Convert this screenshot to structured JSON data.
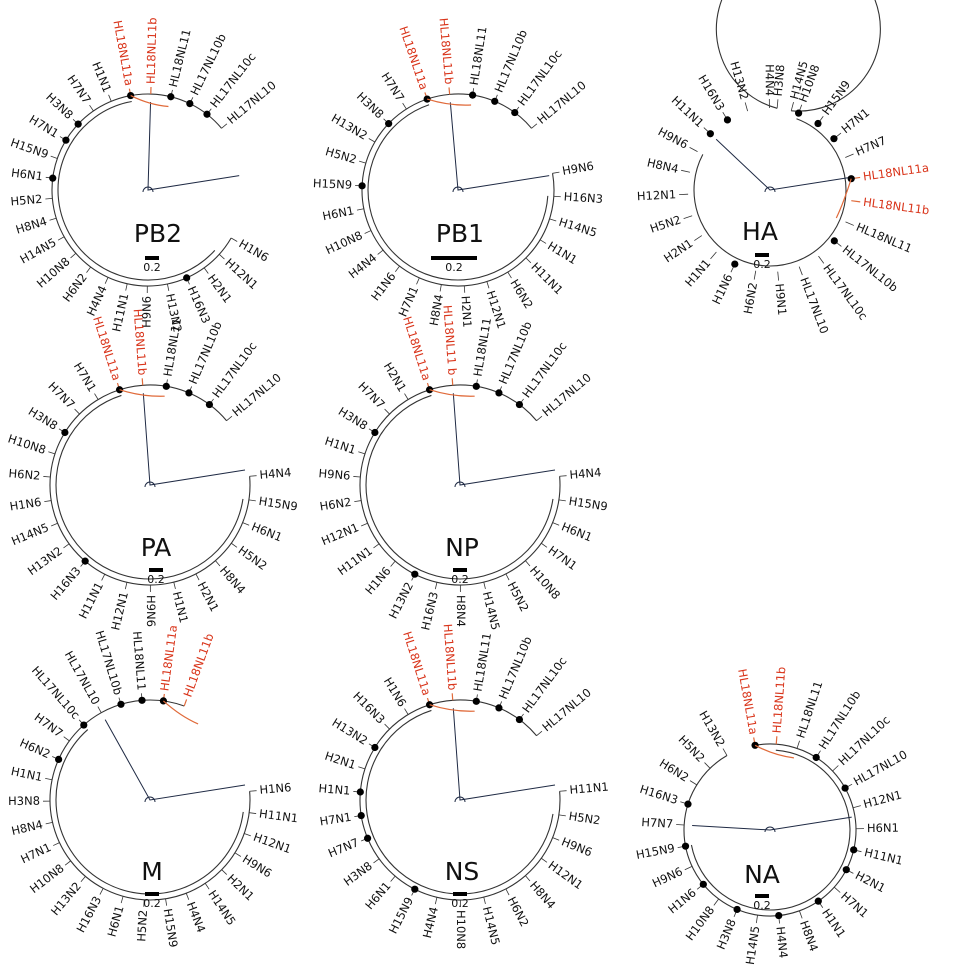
{
  "scale_label": "0.2",
  "trees": [
    {
      "name": "PB2",
      "leaves": [
        {
          "label": "H1N6",
          "red": false
        },
        {
          "label": "H12N1",
          "red": false
        },
        {
          "label": "H2N1",
          "red": false
        },
        {
          "label": "H16N3",
          "red": false,
          "node": true
        },
        {
          "label": "H13N2",
          "red": false
        },
        {
          "label": "H9N6",
          "red": false
        },
        {
          "label": "H11N1",
          "red": false
        },
        {
          "label": "H4N4",
          "red": false
        },
        {
          "label": "H6N2",
          "red": false
        },
        {
          "label": "H10N8",
          "red": false
        },
        {
          "label": "H14N5",
          "red": false
        },
        {
          "label": "H8N4",
          "red": false
        },
        {
          "label": "H5N2",
          "red": false
        },
        {
          "label": "H6N1",
          "red": false,
          "node": true
        },
        {
          "label": "H15N9",
          "red": false
        },
        {
          "label": "H7N1",
          "red": false,
          "node": true
        },
        {
          "label": "H3N8",
          "red": false,
          "node": true
        },
        {
          "label": "H7N7",
          "red": false
        },
        {
          "label": "H1N1",
          "red": false
        },
        {
          "label": "HL18NL11a",
          "red": true,
          "node": true
        },
        {
          "label": "HL18NL11b",
          "red": true
        },
        {
          "label": "HL18NL11",
          "red": false,
          "node": true
        },
        {
          "label": "HL17NL10b",
          "red": false,
          "node": true
        },
        {
          "label": "HL17NL10c",
          "red": false,
          "node": true
        },
        {
          "label": "HL17NL10",
          "red": false
        }
      ]
    },
    {
      "name": "PB1",
      "leaves": [
        {
          "label": "H9N6",
          "red": false
        },
        {
          "label": "H16N3",
          "red": false
        },
        {
          "label": "H14N5",
          "red": false
        },
        {
          "label": "H1N1",
          "red": false
        },
        {
          "label": "H11N1",
          "red": false
        },
        {
          "label": "H6N2",
          "red": false
        },
        {
          "label": "H12N1",
          "red": false
        },
        {
          "label": "H2N1",
          "red": false
        },
        {
          "label": "H8N4",
          "red": false
        },
        {
          "label": "H7N1",
          "red": false
        },
        {
          "label": "H1N6",
          "red": false
        },
        {
          "label": "H4N4",
          "red": false
        },
        {
          "label": "H10N8",
          "red": false
        },
        {
          "label": "H6N1",
          "red": false
        },
        {
          "label": "H15N9",
          "red": false,
          "node": true
        },
        {
          "label": "H5N2",
          "red": false
        },
        {
          "label": "H13N2",
          "red": false
        },
        {
          "label": "H3N8",
          "red": false,
          "node": true
        },
        {
          "label": "H7N7",
          "red": false
        },
        {
          "label": "HL18NL11a",
          "red": true,
          "node": true
        },
        {
          "label": "HL18NL11b",
          "red": true
        },
        {
          "label": "HL18NL11",
          "red": false,
          "node": true
        },
        {
          "label": "HL17NL10b",
          "red": false,
          "node": true
        },
        {
          "label": "HL17NL10c",
          "red": false,
          "node": true
        },
        {
          "label": "HL17NL10",
          "red": false
        }
      ]
    },
    {
      "name": "HA",
      "leaves": [
        {
          "label": "H3N8",
          "red": false
        },
        {
          "label": "H10N8",
          "red": false,
          "node": true
        },
        {
          "label": "H15N9",
          "red": false,
          "node": true
        },
        {
          "label": "H7N1",
          "red": false,
          "node": true
        },
        {
          "label": "H7N7",
          "red": false
        },
        {
          "label": "HL18NL11a",
          "red": true,
          "node": true
        },
        {
          "label": "HL18NL11b",
          "red": true
        },
        {
          "label": "HL18NL11",
          "red": false
        },
        {
          "label": "HL17NL10b",
          "red": false,
          "node": true
        },
        {
          "label": "HL17NL10c",
          "red": false
        },
        {
          "label": "HL17NL10",
          "red": false
        },
        {
          "label": "H9N1",
          "red": false
        },
        {
          "label": "H6N2",
          "red": false
        },
        {
          "label": "H1N6",
          "red": false,
          "node": true
        },
        {
          "label": "H1N1",
          "red": false
        },
        {
          "label": "H2N1",
          "red": false
        },
        {
          "label": "H5N2",
          "red": false
        },
        {
          "label": "H12N1",
          "red": false
        },
        {
          "label": "H8N4",
          "red": false
        },
        {
          "label": "H9N6",
          "red": false
        },
        {
          "label": "H11N1",
          "red": false,
          "node": true
        },
        {
          "label": "H16N3",
          "red": false,
          "node": true
        },
        {
          "label": "H13N2",
          "red": false
        },
        {
          "label": "H4N4",
          "red": false
        },
        {
          "label": "H14N5",
          "red": false
        }
      ]
    },
    {
      "name": "PA",
      "leaves": [
        {
          "label": "H4N4",
          "red": false
        },
        {
          "label": "H15N9",
          "red": false
        },
        {
          "label": "H6N1",
          "red": false
        },
        {
          "label": "H5N2",
          "red": false
        },
        {
          "label": "H8N4",
          "red": false
        },
        {
          "label": "H2N1",
          "red": false
        },
        {
          "label": "H1N1",
          "red": false
        },
        {
          "label": "H9N6",
          "red": false
        },
        {
          "label": "H12N1",
          "red": false
        },
        {
          "label": "H11N1",
          "red": false
        },
        {
          "label": "H16N3",
          "red": false,
          "node": true
        },
        {
          "label": "H13N2",
          "red": false
        },
        {
          "label": "H14N5",
          "red": false
        },
        {
          "label": "H1N6",
          "red": false
        },
        {
          "label": "H6N2",
          "red": false
        },
        {
          "label": "H10N8",
          "red": false
        },
        {
          "label": "H3N8",
          "red": false,
          "node": true
        },
        {
          "label": "H7N7",
          "red": false
        },
        {
          "label": "H7N1",
          "red": false
        },
        {
          "label": "HL18NL11a",
          "red": true,
          "node": true
        },
        {
          "label": "HL18NL11b",
          "red": true
        },
        {
          "label": "HL18NL11",
          "red": false,
          "node": true
        },
        {
          "label": "HL17NL10b",
          "red": false,
          "node": true
        },
        {
          "label": "HL17NL10c",
          "red": false,
          "node": true
        },
        {
          "label": "HL17NL10",
          "red": false
        }
      ]
    },
    {
      "name": "NP",
      "leaves": [
        {
          "label": "H4N4",
          "red": false
        },
        {
          "label": "H15N9",
          "red": false
        },
        {
          "label": "H6N1",
          "red": false
        },
        {
          "label": "H7N1",
          "red": false
        },
        {
          "label": "H10N8",
          "red": false
        },
        {
          "label": "H5N2",
          "red": false
        },
        {
          "label": "H14N5",
          "red": false
        },
        {
          "label": "H8N4",
          "red": false
        },
        {
          "label": "H16N3",
          "red": false
        },
        {
          "label": "H13N2",
          "red": false,
          "node": true
        },
        {
          "label": "H1N6",
          "red": false
        },
        {
          "label": "H11N1",
          "red": false
        },
        {
          "label": "H12N1",
          "red": false
        },
        {
          "label": "H6N2",
          "red": false
        },
        {
          "label": "H9N6",
          "red": false
        },
        {
          "label": "H1N1",
          "red": false
        },
        {
          "label": "H3N8",
          "red": false,
          "node": true
        },
        {
          "label": "H7N7",
          "red": false
        },
        {
          "label": "H2N1",
          "red": false
        },
        {
          "label": "HL18NL11a",
          "red": true,
          "node": true
        },
        {
          "label": "HL18NL11 b",
          "red": true
        },
        {
          "label": "HL18NL11",
          "red": false,
          "node": true
        },
        {
          "label": "HL17NL10b",
          "red": false,
          "node": true
        },
        {
          "label": "HL17NL10c",
          "red": false,
          "node": true
        },
        {
          "label": "HL17NL10",
          "red": false
        }
      ]
    },
    {
      "name": "M",
      "leaves": [
        {
          "label": "H1N6",
          "red": false
        },
        {
          "label": "H11N1",
          "red": false
        },
        {
          "label": "H12N1",
          "red": false
        },
        {
          "label": "H9N6",
          "red": false
        },
        {
          "label": "H2N1",
          "red": false
        },
        {
          "label": "H14N5",
          "red": false
        },
        {
          "label": "H4N4",
          "red": false
        },
        {
          "label": "H15N9",
          "red": false
        },
        {
          "label": "H5N2",
          "red": false
        },
        {
          "label": "H6N1",
          "red": false
        },
        {
          "label": "H16N3",
          "red": false
        },
        {
          "label": "H13N2",
          "red": false
        },
        {
          "label": "H10N8",
          "red": false
        },
        {
          "label": "H7N1",
          "red": false
        },
        {
          "label": "H8N4",
          "red": false
        },
        {
          "label": "H3N8",
          "red": false
        },
        {
          "label": "H1N1",
          "red": false
        },
        {
          "label": "H6N2",
          "red": false,
          "node": true
        },
        {
          "label": "H7N7",
          "red": false
        },
        {
          "label": "HL17NL10c",
          "red": false,
          "node": true
        },
        {
          "label": "HL17NL10",
          "red": false
        },
        {
          "label": "HL17NL10b",
          "red": false,
          "node": true
        },
        {
          "label": "HL18NL11",
          "red": false,
          "node": true
        },
        {
          "label": "HL18NL11a",
          "red": true,
          "node": true
        },
        {
          "label": "HL18NL11b",
          "red": true
        }
      ]
    },
    {
      "name": "NS",
      "leaves": [
        {
          "label": "H11N1",
          "red": false
        },
        {
          "label": "H5N2",
          "red": false
        },
        {
          "label": "H9N6",
          "red": false
        },
        {
          "label": "H12N1",
          "red": false
        },
        {
          "label": "H8N4",
          "red": false
        },
        {
          "label": "H6N2",
          "red": false
        },
        {
          "label": "H14N5",
          "red": false
        },
        {
          "label": "H10N8",
          "red": false
        },
        {
          "label": "H4N4",
          "red": false
        },
        {
          "label": "H15N9",
          "red": false,
          "node": true
        },
        {
          "label": "H6N1",
          "red": false
        },
        {
          "label": "H3N8",
          "red": false
        },
        {
          "label": "H7N7",
          "red": false,
          "node": true
        },
        {
          "label": "H7N1",
          "red": false,
          "node": true
        },
        {
          "label": "H1N1",
          "red": false,
          "node": true
        },
        {
          "label": "H2N1",
          "red": false
        },
        {
          "label": "H13N2",
          "red": false,
          "node": true
        },
        {
          "label": "H16N3",
          "red": false
        },
        {
          "label": "H1N6",
          "red": false
        },
        {
          "label": "HL18NL11a",
          "red": true,
          "node": true
        },
        {
          "label": "HL18NL11b",
          "red": true
        },
        {
          "label": "HL18NL11",
          "red": false,
          "node": true
        },
        {
          "label": "HL17NL10b",
          "red": false,
          "node": true
        },
        {
          "label": "HL17NL10c",
          "red": false,
          "node": true
        },
        {
          "label": "HL17NL10",
          "red": false
        }
      ]
    },
    {
      "name": "NA",
      "leaves": [
        {
          "label": "HL18NL11a",
          "red": true,
          "node": true
        },
        {
          "label": "HL18NL11b",
          "red": true
        },
        {
          "label": "HL18NL11",
          "red": false
        },
        {
          "label": "HL17NL10b",
          "red": false,
          "node": true
        },
        {
          "label": "HL17NL10c",
          "red": false
        },
        {
          "label": "HL17NL10",
          "red": false,
          "node": true
        },
        {
          "label": "H12N1",
          "red": false
        },
        {
          "label": "H6N1",
          "red": false
        },
        {
          "label": "H11N1",
          "red": false,
          "node": true
        },
        {
          "label": "H2N1",
          "red": false,
          "node": true
        },
        {
          "label": "H7N1",
          "red": false
        },
        {
          "label": "H1N1",
          "red": false,
          "node": true
        },
        {
          "label": "H8N4",
          "red": false
        },
        {
          "label": "H4N4",
          "red": false,
          "node": true
        },
        {
          "label": "H14N5",
          "red": false
        },
        {
          "label": "H3N8",
          "red": false,
          "node": true
        },
        {
          "label": "H10N8",
          "red": false
        },
        {
          "label": "H1N6",
          "red": false,
          "node": true
        },
        {
          "label": "H9N6",
          "red": false
        },
        {
          "label": "H15N9",
          "red": false,
          "node": true
        },
        {
          "label": "H7N7",
          "red": false
        },
        {
          "label": "H16N3",
          "red": false,
          "node": true
        },
        {
          "label": "H6N2",
          "red": false
        },
        {
          "label": "H5N2",
          "red": false
        },
        {
          "label": "H13N2",
          "red": false
        }
      ]
    }
  ]
}
